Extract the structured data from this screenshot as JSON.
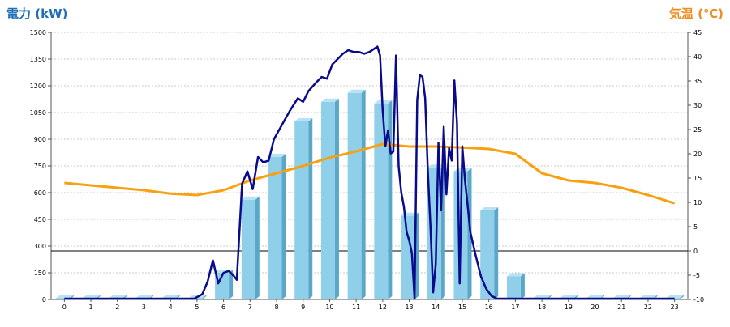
{
  "colors": {
    "left_axis_title": "#1f6fb5",
    "right_axis_title": "#f08a1c",
    "bar_front": "#8fcfea",
    "bar_side": "#5aa7c9",
    "bar_top": "#b7e3f4",
    "power_line": "#0a0a8c",
    "temp_line": "#f7a010",
    "grid": "#c8c8c8"
  },
  "chart_data": {
    "type": "bar",
    "left_axis_label": "電力 (kW)",
    "right_axis_label": "気温 (℃)",
    "categories": [
      "0",
      "1",
      "2",
      "3",
      "4",
      "5",
      "6",
      "7",
      "8",
      "9",
      "10",
      "11",
      "12",
      "13",
      "14",
      "15",
      "16",
      "17",
      "18",
      "19",
      "20",
      "21",
      "22",
      "23"
    ],
    "ylim_left": [
      0,
      1500
    ],
    "yticks_left": [
      "0",
      "150",
      "300",
      "450",
      "600",
      "750",
      "900",
      "1050",
      "1200",
      "1350",
      "1500"
    ],
    "ylim_right": [
      -10,
      45
    ],
    "yticks_right": [
      "-10",
      "-5",
      "0",
      "5",
      "10",
      "15",
      "20",
      "25",
      "30",
      "35",
      "40",
      "45"
    ],
    "grid": true,
    "series": [
      {
        "type": "bar",
        "axis": "left",
        "values": [
          0,
          0,
          0,
          0,
          0,
          0,
          150,
          560,
          800,
          1000,
          1110,
          1160,
          1100,
          470,
          740,
          720,
          500,
          130,
          0,
          0,
          0,
          0,
          0,
          0
        ]
      },
      {
        "type": "line",
        "axis": "left",
        "x": [
          0,
          1,
          2,
          3,
          4,
          4.9,
          5.2,
          5.4,
          5.6,
          5.8,
          6.0,
          6.2,
          6.4,
          6.5,
          6.7,
          6.9,
          7.1,
          7.3,
          7.5,
          7.7,
          7.9,
          8.2,
          8.5,
          8.8,
          9.0,
          9.2,
          9.5,
          9.7,
          9.9,
          10.1,
          10.3,
          10.5,
          10.7,
          10.9,
          11.1,
          11.3,
          11.5,
          11.7,
          11.8,
          11.9,
          12.0,
          12.1,
          12.2,
          12.3,
          12.4,
          12.5,
          12.6,
          12.7,
          12.8,
          12.9,
          13.0,
          13.1,
          13.2,
          13.3,
          13.4,
          13.5,
          13.6,
          13.7,
          13.8,
          13.9,
          14.0,
          14.1,
          14.2,
          14.3,
          14.4,
          14.5,
          14.6,
          14.7,
          14.8,
          14.9,
          15.0,
          15.1,
          15.2,
          15.3,
          15.5,
          15.7,
          15.9,
          16.1,
          16.3,
          16.5,
          16.7,
          16.9,
          17.1,
          17.3,
          17.5,
          17.8,
          18.2,
          19,
          20,
          21,
          22,
          23
        ],
        "values": [
          0,
          0,
          0,
          0,
          0,
          0,
          30,
          100,
          220,
          90,
          150,
          160,
          130,
          110,
          650,
          720,
          620,
          800,
          770,
          780,
          900,
          980,
          1060,
          1130,
          1110,
          1170,
          1220,
          1250,
          1240,
          1320,
          1350,
          1380,
          1400,
          1390,
          1390,
          1380,
          1390,
          1410,
          1420,
          1370,
          1060,
          860,
          950,
          820,
          830,
          1370,
          750,
          600,
          520,
          380,
          330,
          260,
          0,
          1120,
          1260,
          1250,
          1130,
          720,
          410,
          40,
          200,
          880,
          500,
          970,
          590,
          850,
          780,
          1230,
          990,
          90,
          860,
          670,
          530,
          380,
          250,
          130,
          60,
          20,
          5,
          0,
          0,
          0,
          0,
          0,
          0,
          0,
          0,
          0,
          0,
          0,
          0,
          0
        ]
      },
      {
        "type": "line",
        "axis": "right",
        "x": [
          0,
          1,
          2,
          3,
          4,
          5,
          6,
          7,
          8,
          9,
          10,
          11,
          12,
          13,
          14,
          15,
          16,
          17,
          18,
          19,
          20,
          21,
          22,
          23
        ],
        "values": [
          14,
          13.5,
          13,
          12.5,
          11.8,
          11.5,
          12.5,
          14.5,
          16,
          17.5,
          19.2,
          20.5,
          22,
          21.5,
          21.5,
          21.3,
          21,
          20,
          16,
          14.5,
          14,
          13,
          11.5,
          9.8
        ]
      }
    ]
  }
}
